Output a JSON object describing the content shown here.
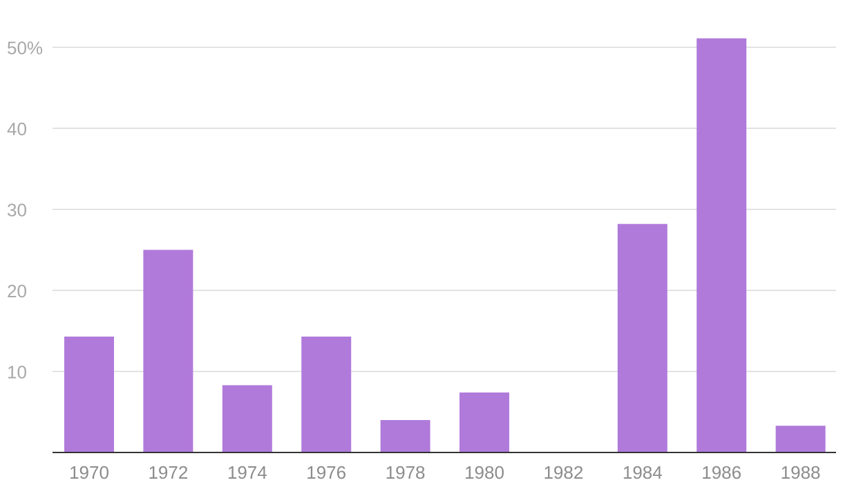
{
  "chart_data": {
    "type": "bar",
    "title": "",
    "xlabel": "",
    "ylabel": "",
    "categories": [
      "1970",
      "1972",
      "1974",
      "1976",
      "1978",
      "1980",
      "1982",
      "1984",
      "1986",
      "1988"
    ],
    "values": [
      14.3,
      25.0,
      8.3,
      14.3,
      4.0,
      7.4,
      0,
      28.2,
      51.1,
      3.3
    ],
    "ylim": [
      0,
      50
    ],
    "y_ticks": [
      {
        "value": 10,
        "label": "10"
      },
      {
        "value": 20,
        "label": "20"
      },
      {
        "value": 30,
        "label": "30"
      },
      {
        "value": 40,
        "label": "40"
      },
      {
        "value": 50,
        "label": "50%"
      }
    ],
    "grid": true,
    "legend": "none",
    "colors": {
      "bar": "#b07adb",
      "grid": "#d9d9d9",
      "axis": "#333333"
    }
  }
}
